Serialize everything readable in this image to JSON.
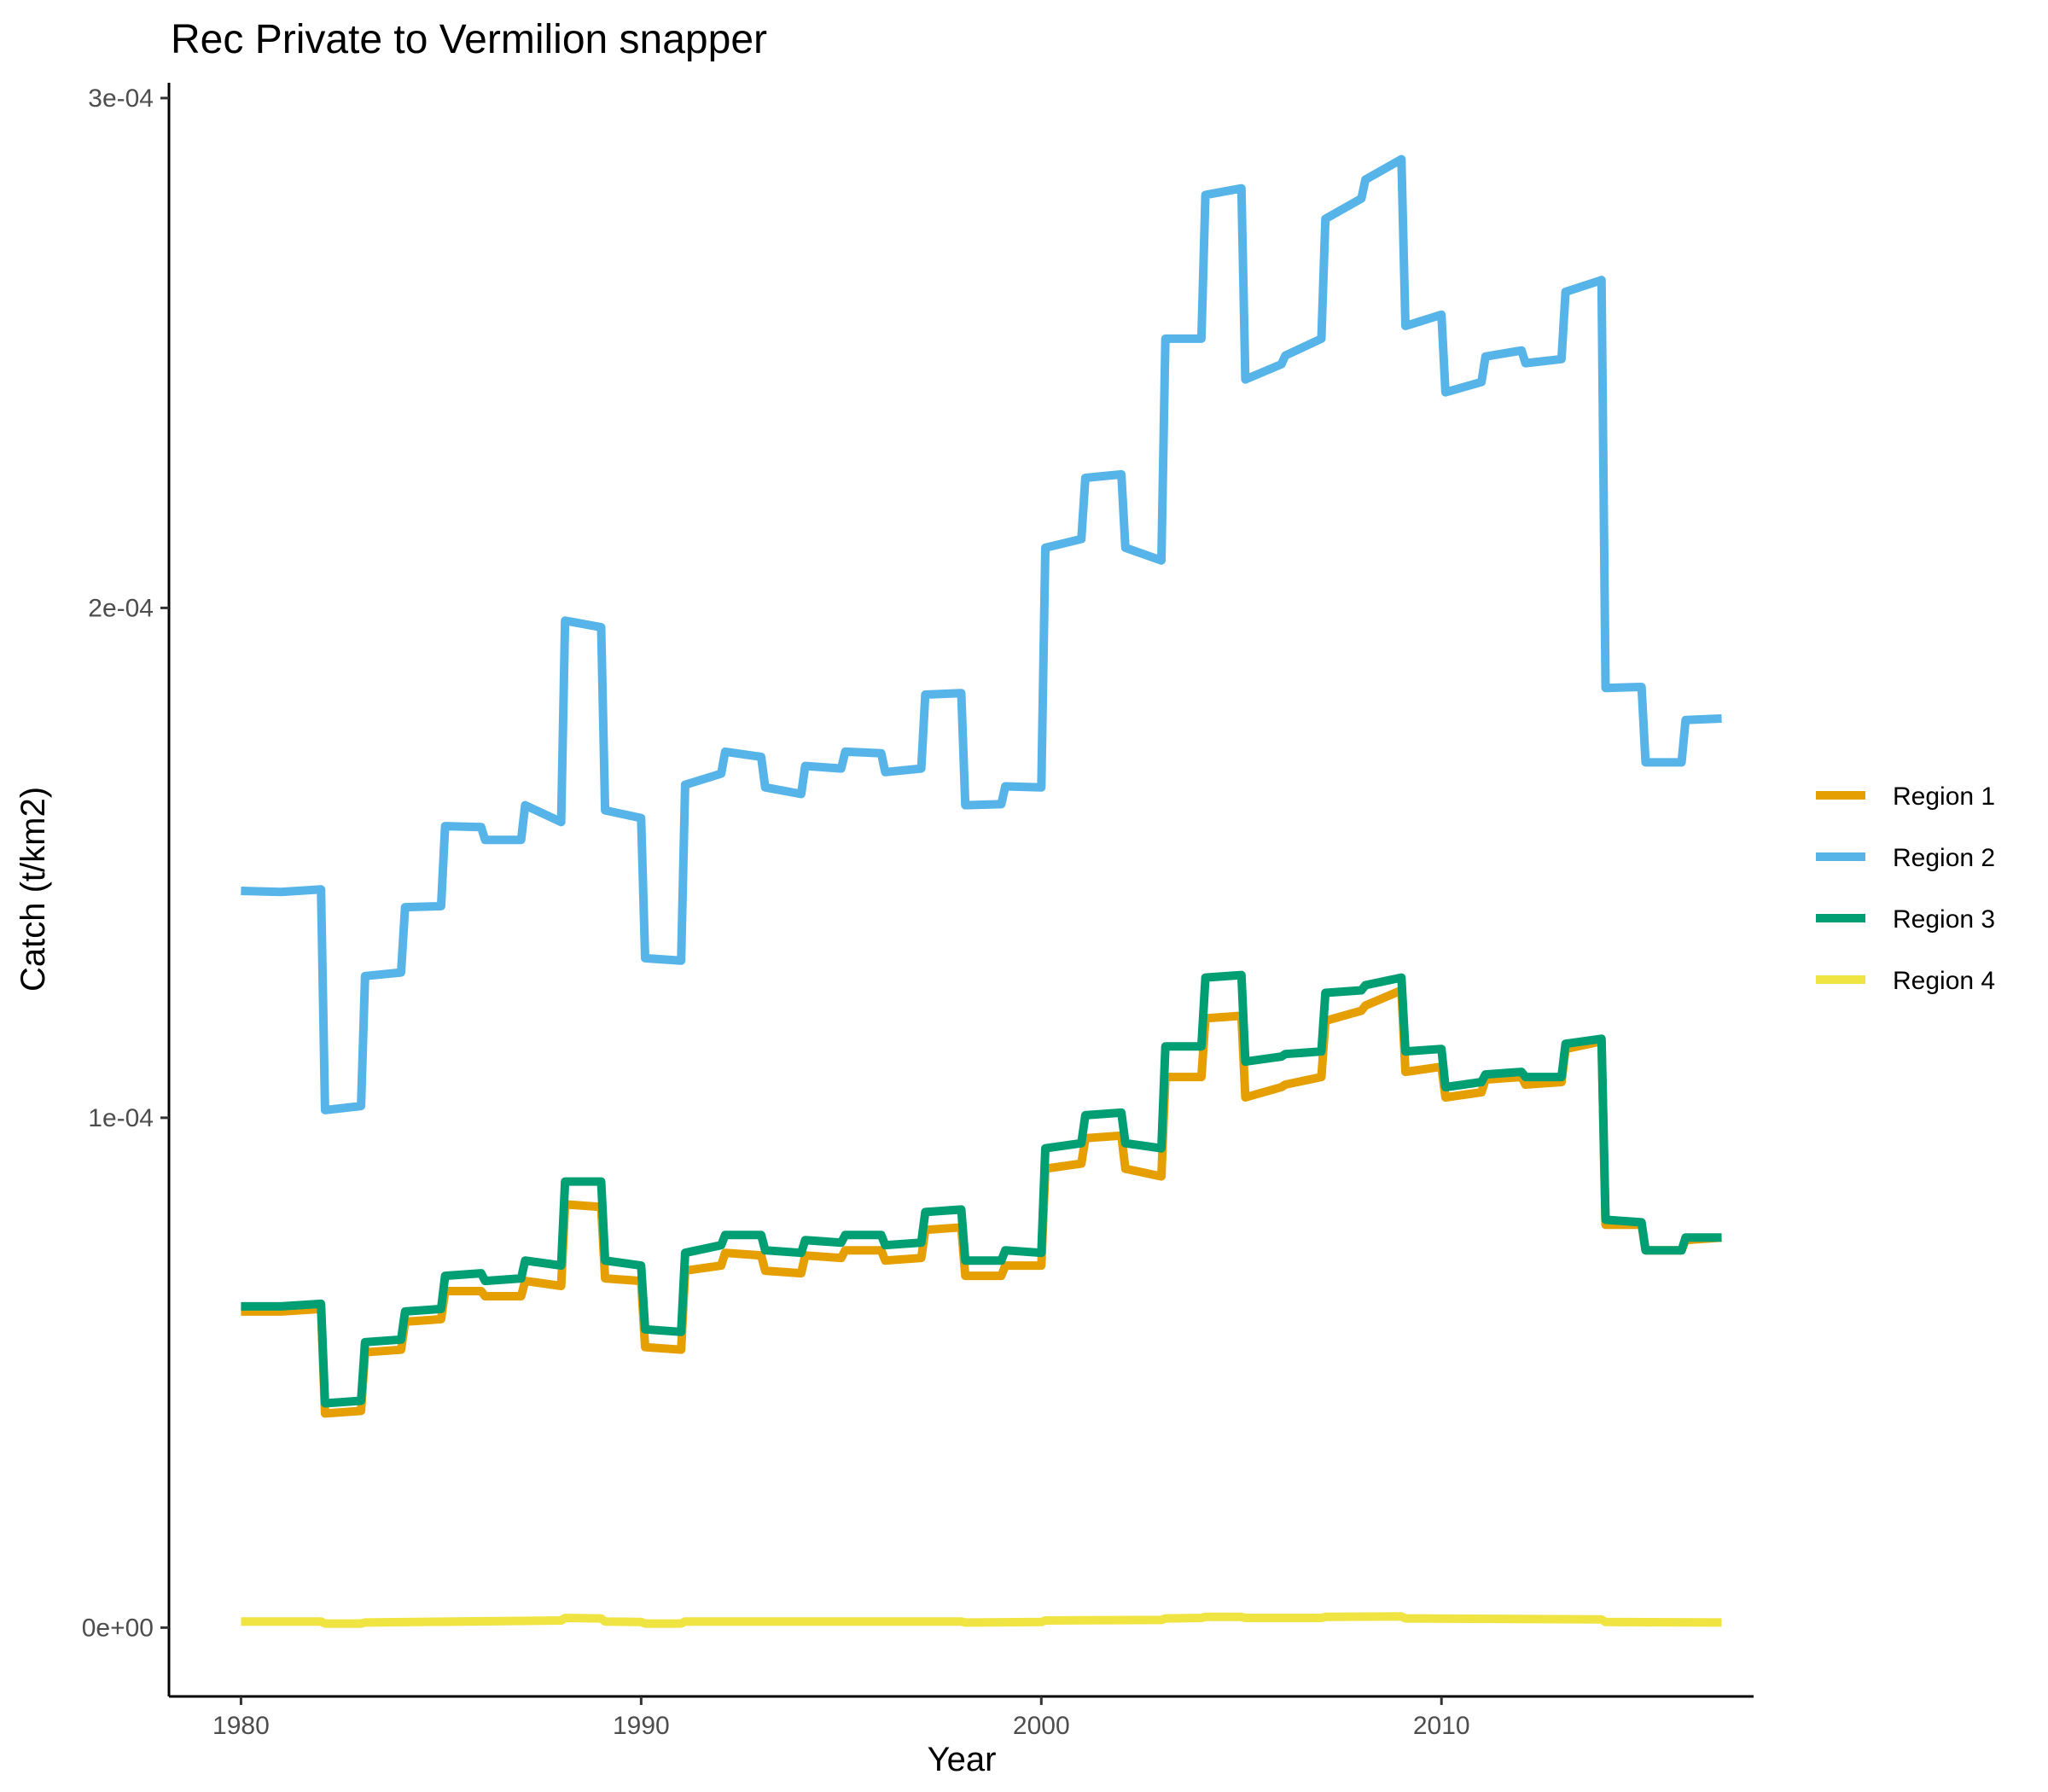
{
  "chart_data": {
    "type": "line",
    "title": "Rec Private to Vermilion snapper",
    "xlabel": "Year",
    "ylabel": "Catch (t/km2)",
    "xlim": [
      1978.2,
      2017.8
    ],
    "ylim": [
      -1.35e-05,
      0.000303
    ],
    "xticks": [
      1980,
      1990,
      2000,
      2010
    ],
    "xtick_labels": [
      "1980",
      "1990",
      "2000",
      "2010"
    ],
    "yticks": [
      0,
      0.0001,
      0.0002,
      0.0003
    ],
    "ytick_labels": [
      "0e+00",
      "1e-04",
      "2e-04",
      "3e-04"
    ],
    "grid": false,
    "legend_position": "right",
    "series": [
      {
        "name": "Region 1",
        "color": "#E69F00",
        "points": [
          [
            1980,
            6.2e-05
          ],
          [
            1981,
            6.2e-05
          ],
          [
            1982,
            6.25e-05
          ],
          [
            1982.1,
            4.2e-05
          ],
          [
            1983,
            4.25e-05
          ],
          [
            1983.1,
            5.4e-05
          ],
          [
            1984,
            5.45e-05
          ],
          [
            1984.1,
            6e-05
          ],
          [
            1985,
            6.05e-05
          ],
          [
            1985.1,
            6.6e-05
          ],
          [
            1986,
            6.6e-05
          ],
          [
            1986.1,
            6.5e-05
          ],
          [
            1987,
            6.5e-05
          ],
          [
            1987.1,
            6.8e-05
          ],
          [
            1988,
            6.7e-05
          ],
          [
            1988.1,
            8.3e-05
          ],
          [
            1989,
            8.25e-05
          ],
          [
            1989.1,
            6.85e-05
          ],
          [
            1990,
            6.8e-05
          ],
          [
            1990.1,
            5.5e-05
          ],
          [
            1991,
            5.45e-05
          ],
          [
            1991.1,
            7e-05
          ],
          [
            1992,
            7.1e-05
          ],
          [
            1992.1,
            7.35e-05
          ],
          [
            1993,
            7.3e-05
          ],
          [
            1993.1,
            7e-05
          ],
          [
            1994,
            6.95e-05
          ],
          [
            1994.1,
            7.3e-05
          ],
          [
            1995,
            7.25e-05
          ],
          [
            1995.1,
            7.4e-05
          ],
          [
            1996,
            7.4e-05
          ],
          [
            1996.1,
            7.2e-05
          ],
          [
            1997,
            7.25e-05
          ],
          [
            1997.1,
            7.8e-05
          ],
          [
            1998,
            7.85e-05
          ],
          [
            1998.1,
            6.9e-05
          ],
          [
            1999,
            6.9e-05
          ],
          [
            1999.1,
            7.1e-05
          ],
          [
            2000,
            7.1e-05
          ],
          [
            2000.1,
            9e-05
          ],
          [
            2001,
            9.1e-05
          ],
          [
            2001.1,
            9.6e-05
          ],
          [
            2002,
            9.65e-05
          ],
          [
            2002.1,
            9e-05
          ],
          [
            2003,
            8.85e-05
          ],
          [
            2003.1,
            0.000108
          ],
          [
            2004,
            0.000108
          ],
          [
            2004.1,
            0.0001195
          ],
          [
            2005,
            0.00012
          ],
          [
            2005.1,
            0.000104
          ],
          [
            2006,
            0.000106
          ],
          [
            2006.1,
            0.0001065
          ],
          [
            2007,
            0.000108
          ],
          [
            2007.1,
            0.000119
          ],
          [
            2008,
            0.000121
          ],
          [
            2008.1,
            0.000122
          ],
          [
            2009,
            0.000125
          ],
          [
            2009.1,
            0.000109
          ],
          [
            2010,
            0.00011
          ],
          [
            2010.1,
            0.000104
          ],
          [
            2011,
            0.000105
          ],
          [
            2011.1,
            0.0001075
          ],
          [
            2012,
            0.000108
          ],
          [
            2012.1,
            0.0001065
          ],
          [
            2013,
            0.000107
          ],
          [
            2013.1,
            0.0001135
          ],
          [
            2014,
            0.000115
          ],
          [
            2014.1,
            7.9e-05
          ],
          [
            2015,
            7.9e-05
          ],
          [
            2015.1,
            7.4e-05
          ],
          [
            2016,
            7.4e-05
          ],
          [
            2016.1,
            7.6e-05
          ],
          [
            2017,
            7.65e-05
          ]
        ]
      },
      {
        "name": "Region 2",
        "color": "#56B4E9",
        "points": [
          [
            1980,
            0.0001445
          ],
          [
            1981,
            0.0001443
          ],
          [
            1982,
            0.0001448
          ],
          [
            1982.1,
            0.0001015
          ],
          [
            1983,
            0.0001023
          ],
          [
            1983.1,
            0.0001278
          ],
          [
            1984,
            0.0001285
          ],
          [
            1984.1,
            0.0001413
          ],
          [
            1985,
            0.0001415
          ],
          [
            1985.1,
            0.0001572
          ],
          [
            1986,
            0.000157
          ],
          [
            1986.1,
            0.0001545
          ],
          [
            1987,
            0.0001545
          ],
          [
            1987.1,
            0.0001613
          ],
          [
            1988,
            0.000158
          ],
          [
            1988.1,
            0.0001975
          ],
          [
            1989,
            0.0001962
          ],
          [
            1989.1,
            0.0001603
          ],
          [
            1990,
            0.0001588
          ],
          [
            1990.1,
            0.0001313
          ],
          [
            1991,
            0.0001308
          ],
          [
            1991.1,
            0.0001653
          ],
          [
            1992,
            0.0001675
          ],
          [
            1992.1,
            0.0001718
          ],
          [
            1993,
            0.0001708
          ],
          [
            1993.1,
            0.0001648
          ],
          [
            1994,
            0.0001635
          ],
          [
            1994.1,
            0.000169
          ],
          [
            1995,
            0.0001685
          ],
          [
            1995.1,
            0.0001718
          ],
          [
            1996,
            0.0001715
          ],
          [
            1996.1,
            0.0001678
          ],
          [
            1997,
            0.0001685
          ],
          [
            1997.1,
            0.000183
          ],
          [
            1998,
            0.0001833
          ],
          [
            1998.1,
            0.0001613
          ],
          [
            1999,
            0.0001615
          ],
          [
            1999.1,
            0.000165
          ],
          [
            2000,
            0.0001648
          ],
          [
            2000.1,
            0.0002118
          ],
          [
            2001,
            0.0002135
          ],
          [
            2001.1,
            0.0002255
          ],
          [
            2002,
            0.0002262
          ],
          [
            2002.1,
            0.0002118
          ],
          [
            2003,
            0.0002093
          ],
          [
            2003.1,
            0.0002528
          ],
          [
            2004,
            0.0002528
          ],
          [
            2004.1,
            0.000281
          ],
          [
            2005,
            0.0002823
          ],
          [
            2005.1,
            0.0002448
          ],
          [
            2006,
            0.0002478
          ],
          [
            2006.1,
            0.0002495
          ],
          [
            2007,
            0.0002528
          ],
          [
            2007.1,
            0.0002763
          ],
          [
            2008,
            0.0002803
          ],
          [
            2008.1,
            0.000284
          ],
          [
            2009,
            0.000288
          ],
          [
            2009.1,
            0.0002553
          ],
          [
            2010,
            0.0002575
          ],
          [
            2010.1,
            0.0002423
          ],
          [
            2011,
            0.0002443
          ],
          [
            2011.1,
            0.0002493
          ],
          [
            2012,
            0.0002505
          ],
          [
            2012.1,
            0.000248
          ],
          [
            2013,
            0.0002488
          ],
          [
            2013.1,
            0.000262
          ],
          [
            2014,
            0.0002643
          ],
          [
            2014.1,
            0.0001843
          ],
          [
            2015,
            0.0001845
          ],
          [
            2015.1,
            0.0001697
          ],
          [
            2016,
            0.0001697
          ],
          [
            2016.1,
            0.000178
          ],
          [
            2017,
            0.0001783
          ]
        ]
      },
      {
        "name": "Region 3",
        "color": "#009E73",
        "points": [
          [
            1980,
            6.3e-05
          ],
          [
            1981,
            6.3e-05
          ],
          [
            1982,
            6.35e-05
          ],
          [
            1982.1,
            4.4e-05
          ],
          [
            1983,
            4.45e-05
          ],
          [
            1983.1,
            5.6e-05
          ],
          [
            1984,
            5.65e-05
          ],
          [
            1984.1,
            6.2e-05
          ],
          [
            1985,
            6.25e-05
          ],
          [
            1985.1,
            6.9e-05
          ],
          [
            1986,
            6.95e-05
          ],
          [
            1986.1,
            6.8e-05
          ],
          [
            1987,
            6.85e-05
          ],
          [
            1987.1,
            7.2e-05
          ],
          [
            1988,
            7.1e-05
          ],
          [
            1988.1,
            8.75e-05
          ],
          [
            1989,
            8.75e-05
          ],
          [
            1989.1,
            7.2e-05
          ],
          [
            1990,
            7.1e-05
          ],
          [
            1990.1,
            5.85e-05
          ],
          [
            1991,
            5.8e-05
          ],
          [
            1991.1,
            7.35e-05
          ],
          [
            1992,
            7.5e-05
          ],
          [
            1992.1,
            7.7e-05
          ],
          [
            1993,
            7.7e-05
          ],
          [
            1993.1,
            7.4e-05
          ],
          [
            1994,
            7.35e-05
          ],
          [
            1994.1,
            7.6e-05
          ],
          [
            1995,
            7.55e-05
          ],
          [
            1995.1,
            7.7e-05
          ],
          [
            1996,
            7.7e-05
          ],
          [
            1996.1,
            7.5e-05
          ],
          [
            1997,
            7.55e-05
          ],
          [
            1997.1,
            8.15e-05
          ],
          [
            1998,
            8.2e-05
          ],
          [
            1998.1,
            7.2e-05
          ],
          [
            1999,
            7.2e-05
          ],
          [
            1999.1,
            7.4e-05
          ],
          [
            2000,
            7.35e-05
          ],
          [
            2000.1,
            9.4e-05
          ],
          [
            2001,
            9.5e-05
          ],
          [
            2001.1,
            0.0001005
          ],
          [
            2002,
            0.000101
          ],
          [
            2002.1,
            9.5e-05
          ],
          [
            2003,
            9.4e-05
          ],
          [
            2003.1,
            0.000114
          ],
          [
            2004,
            0.000114
          ],
          [
            2004.1,
            0.0001275
          ],
          [
            2005,
            0.000128
          ],
          [
            2005.1,
            0.000111
          ],
          [
            2006,
            0.000112
          ],
          [
            2006.1,
            0.0001125
          ],
          [
            2007,
            0.000113
          ],
          [
            2007.1,
            0.0001245
          ],
          [
            2008,
            0.000125
          ],
          [
            2008.1,
            0.000126
          ],
          [
            2009,
            0.0001275
          ],
          [
            2009.1,
            0.000113
          ],
          [
            2010,
            0.0001135
          ],
          [
            2010.1,
            0.000106
          ],
          [
            2011,
            0.000107
          ],
          [
            2011.1,
            0.0001085
          ],
          [
            2012,
            0.000109
          ],
          [
            2012.1,
            0.000108
          ],
          [
            2013,
            0.000108
          ],
          [
            2013.1,
            0.0001145
          ],
          [
            2014,
            0.0001155
          ],
          [
            2014.1,
            8e-05
          ],
          [
            2015,
            7.95e-05
          ],
          [
            2015.1,
            7.4e-05
          ],
          [
            2016,
            7.4e-05
          ],
          [
            2016.1,
            7.65e-05
          ],
          [
            2017,
            7.65e-05
          ]
        ]
      },
      {
        "name": "Region 4",
        "color": "#F0E442",
        "points": [
          [
            1980,
            1.2e-06
          ],
          [
            1982,
            1.2e-06
          ],
          [
            1982.1,
            8e-07
          ],
          [
            1983,
            8e-07
          ],
          [
            1983.1,
            1e-06
          ],
          [
            1988,
            1.4e-06
          ],
          [
            1988.1,
            1.9e-06
          ],
          [
            1989,
            1.8e-06
          ],
          [
            1989.1,
            1.2e-06
          ],
          [
            1990,
            1.1e-06
          ],
          [
            1990.1,
            8e-07
          ],
          [
            1991,
            8e-07
          ],
          [
            1991.1,
            1.2e-06
          ],
          [
            1998,
            1.2e-06
          ],
          [
            1998.1,
            1e-06
          ],
          [
            2000,
            1.1e-06
          ],
          [
            2000.1,
            1.4e-06
          ],
          [
            2003,
            1.5e-06
          ],
          [
            2003.1,
            1.8e-06
          ],
          [
            2004,
            1.9e-06
          ],
          [
            2004.1,
            2.1e-06
          ],
          [
            2005,
            2.1e-06
          ],
          [
            2005.1,
            1.9e-06
          ],
          [
            2007,
            1.9e-06
          ],
          [
            2007.1,
            2.1e-06
          ],
          [
            2009,
            2.2e-06
          ],
          [
            2009.1,
            1.8e-06
          ],
          [
            2014,
            1.6e-06
          ],
          [
            2014.1,
            1.1e-06
          ],
          [
            2017,
            1e-06
          ]
        ]
      }
    ]
  }
}
